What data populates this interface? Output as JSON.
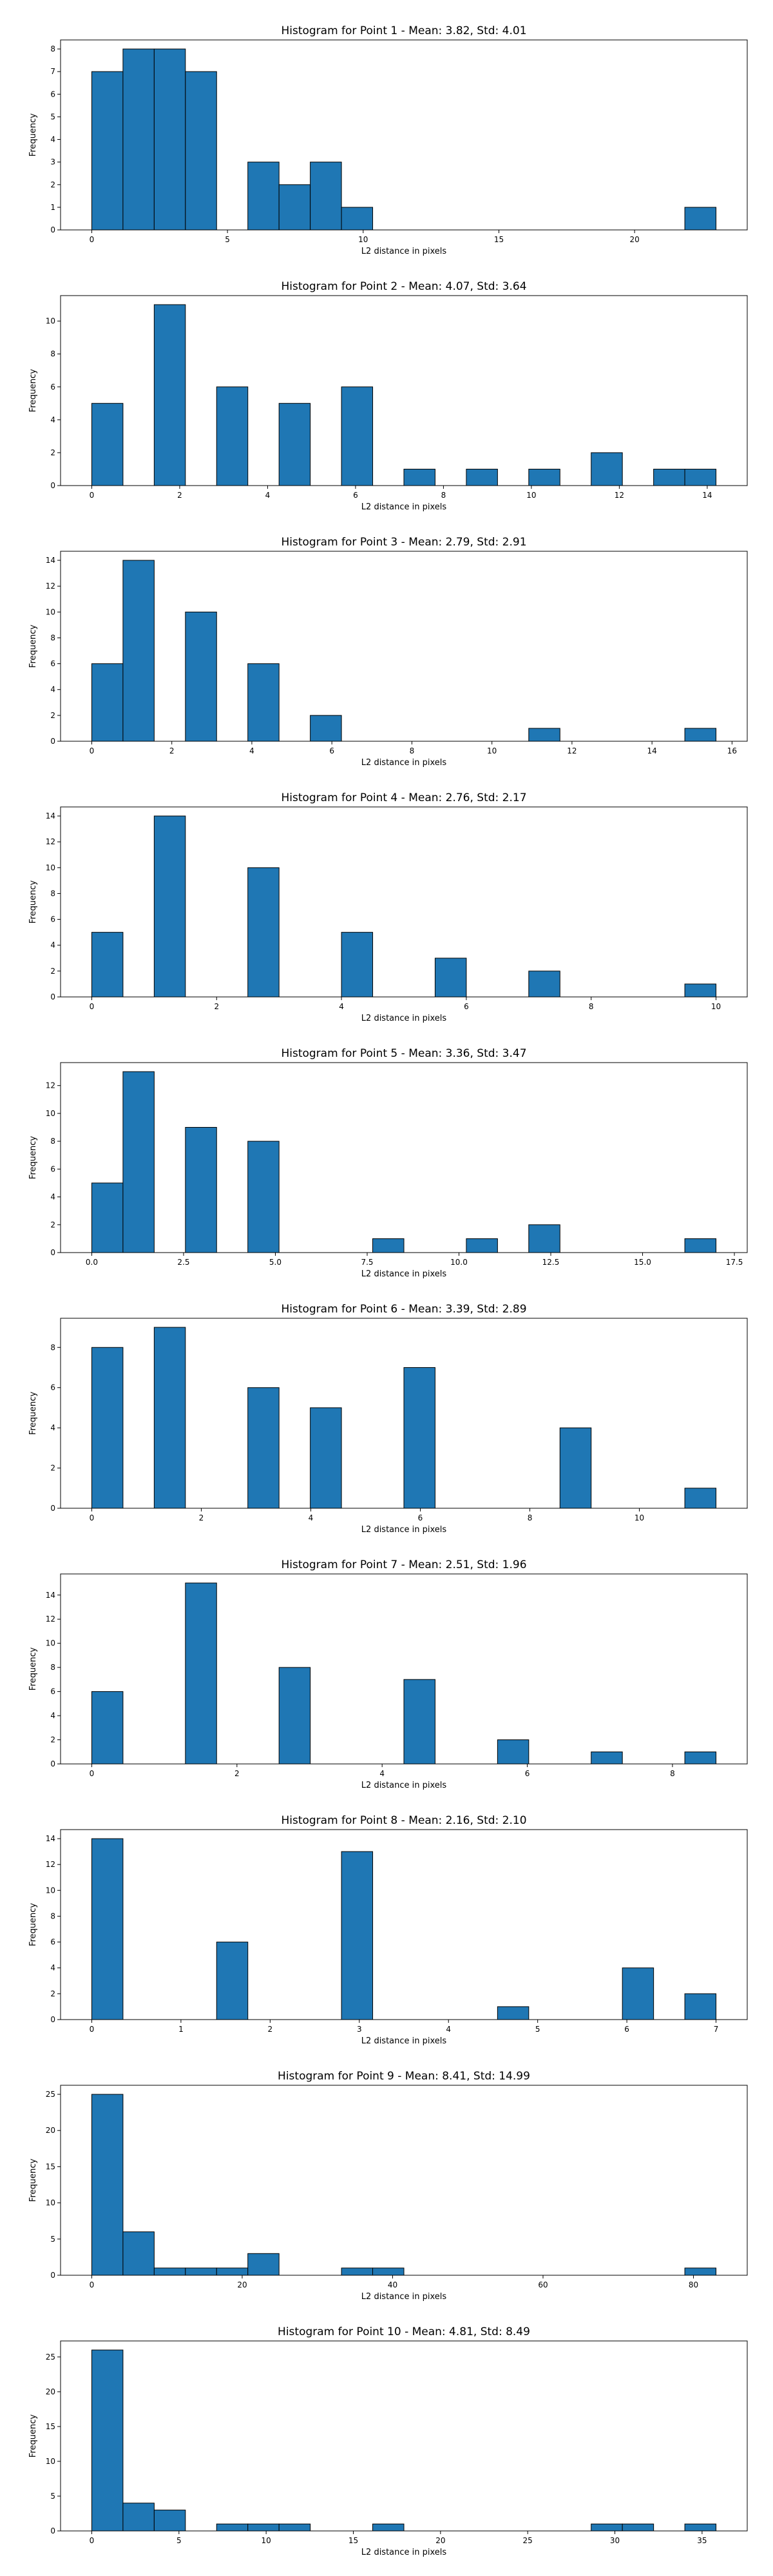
{
  "style": {
    "bar_color": "#1f77b4",
    "edge_color": "#000000"
  },
  "chart_data": [
    {
      "type": "bar",
      "title": "Histogram for Point 1 - Mean: 3.82, Std: 4.01",
      "xlabel": "L2 distance in pixels",
      "ylabel": "Frequency",
      "xlim": [
        -1.15,
        24.15
      ],
      "ylim": [
        0,
        8.4
      ],
      "xticks": [
        0,
        5,
        10,
        15,
        20
      ],
      "xtick_labels": [
        "0",
        "5",
        "10",
        "15",
        "20"
      ],
      "yticks": [
        0,
        1,
        2,
        3,
        4,
        5,
        6,
        7,
        8
      ],
      "bin_start": 0,
      "bin_width": 1.15,
      "counts": [
        7,
        8,
        8,
        7,
        0,
        3,
        2,
        3,
        1,
        0,
        0,
        0,
        0,
        0,
        0,
        0,
        0,
        0,
        0,
        1
      ]
    },
    {
      "type": "bar",
      "title": "Histogram for Point 2 - Mean: 4.07, Std: 3.64",
      "xlabel": "L2 distance in pixels",
      "ylabel": "Frequency",
      "xlim": [
        -0.71,
        14.91
      ],
      "ylim": [
        0,
        11.55
      ],
      "xticks": [
        0,
        2,
        4,
        6,
        8,
        10,
        12,
        14
      ],
      "xtick_labels": [
        "0",
        "2",
        "4",
        "6",
        "8",
        "10",
        "12",
        "14"
      ],
      "yticks": [
        0,
        2,
        4,
        6,
        8,
        10
      ],
      "bin_start": 0,
      "bin_width": 0.71,
      "counts": [
        5,
        0,
        11,
        0,
        6,
        0,
        5,
        0,
        6,
        0,
        1,
        0,
        1,
        0,
        1,
        0,
        2,
        0,
        1,
        1
      ]
    },
    {
      "type": "bar",
      "title": "Histogram for Point 3 - Mean: 2.79, Std: 2.91",
      "xlabel": "L2 distance in pixels",
      "ylabel": "Frequency",
      "xlim": [
        -0.78,
        16.38
      ],
      "ylim": [
        0,
        14.7
      ],
      "xticks": [
        0,
        2,
        4,
        6,
        8,
        10,
        12,
        14,
        16
      ],
      "xtick_labels": [
        "0",
        "2",
        "4",
        "6",
        "8",
        "10",
        "12",
        "14",
        "16"
      ],
      "yticks": [
        0,
        2,
        4,
        6,
        8,
        10,
        12,
        14
      ],
      "bin_start": 0,
      "bin_width": 0.78,
      "counts": [
        6,
        14,
        0,
        10,
        0,
        6,
        0,
        2,
        0,
        0,
        0,
        0,
        0,
        0,
        1,
        0,
        0,
        0,
        0,
        1
      ]
    },
    {
      "type": "bar",
      "title": "Histogram for Point 4 - Mean: 2.76, Std: 2.17",
      "xlabel": "L2 distance in pixels",
      "ylabel": "Frequency",
      "xlim": [
        -0.5,
        10.5
      ],
      "ylim": [
        0,
        14.7
      ],
      "xticks": [
        0,
        2,
        4,
        6,
        8,
        10
      ],
      "xtick_labels": [
        "0",
        "2",
        "4",
        "6",
        "8",
        "10"
      ],
      "yticks": [
        0,
        2,
        4,
        6,
        8,
        10,
        12,
        14
      ],
      "bin_start": 0,
      "bin_width": 0.5,
      "counts": [
        5,
        0,
        14,
        0,
        0,
        10,
        0,
        0,
        5,
        0,
        0,
        3,
        0,
        0,
        2,
        0,
        0,
        0,
        0,
        1
      ]
    },
    {
      "type": "bar",
      "title": "Histogram for Point 5 - Mean: 3.36, Std: 3.47",
      "xlabel": "L2 distance in pixels",
      "ylabel": "Frequency",
      "xlim": [
        -0.85,
        17.85
      ],
      "ylim": [
        0,
        13.65
      ],
      "xticks": [
        0,
        2.5,
        5,
        7.5,
        10,
        12.5,
        15,
        17.5
      ],
      "xtick_labels": [
        "0.0",
        "2.5",
        "5.0",
        "7.5",
        "10.0",
        "12.5",
        "15.0",
        "17.5"
      ],
      "yticks": [
        0,
        2,
        4,
        6,
        8,
        10,
        12
      ],
      "bin_start": 0,
      "bin_width": 0.85,
      "counts": [
        5,
        13,
        0,
        9,
        0,
        8,
        0,
        0,
        0,
        1,
        0,
        0,
        1,
        0,
        2,
        0,
        0,
        0,
        0,
        1
      ]
    },
    {
      "type": "bar",
      "title": "Histogram for Point 6 - Mean: 3.39, Std: 2.89",
      "xlabel": "L2 distance in pixels",
      "ylabel": "Frequency",
      "xlim": [
        -0.57,
        11.97
      ],
      "ylim": [
        0,
        9.45
      ],
      "xticks": [
        0,
        2,
        4,
        6,
        8,
        10
      ],
      "xtick_labels": [
        "0",
        "2",
        "4",
        "6",
        "8",
        "10"
      ],
      "yticks": [
        0,
        2,
        4,
        6,
        8
      ],
      "bin_start": 0,
      "bin_width": 0.57,
      "counts": [
        8,
        0,
        9,
        0,
        0,
        6,
        0,
        5,
        0,
        0,
        7,
        0,
        0,
        0,
        0,
        4,
        0,
        0,
        0,
        1
      ]
    },
    {
      "type": "bar",
      "title": "Histogram for Point 7 - Mean: 2.51, Std: 1.96",
      "xlabel": "L2 distance in pixels",
      "ylabel": "Frequency",
      "xlim": [
        -0.43,
        9.03
      ],
      "ylim": [
        0,
        15.75
      ],
      "xticks": [
        0,
        2,
        4,
        6,
        8
      ],
      "xtick_labels": [
        "0",
        "2",
        "4",
        "6",
        "8"
      ],
      "yticks": [
        0,
        2,
        4,
        6,
        8,
        10,
        12,
        14
      ],
      "bin_start": 0,
      "bin_width": 0.43,
      "counts": [
        6,
        0,
        0,
        15,
        0,
        0,
        8,
        0,
        0,
        0,
        7,
        0,
        0,
        2,
        0,
        0,
        1,
        0,
        0,
        1
      ]
    },
    {
      "type": "bar",
      "title": "Histogram for Point 8 - Mean: 2.16, Std: 2.10",
      "xlabel": "L2 distance in pixels",
      "ylabel": "Frequency",
      "xlim": [
        -0.35,
        7.35
      ],
      "ylim": [
        0,
        14.7
      ],
      "xticks": [
        0,
        1,
        2,
        3,
        4,
        5,
        6,
        7
      ],
      "xtick_labels": [
        "0",
        "1",
        "2",
        "3",
        "4",
        "5",
        "6",
        "7"
      ],
      "yticks": [
        0,
        2,
        4,
        6,
        8,
        10,
        12,
        14
      ],
      "bin_start": 0,
      "bin_width": 0.35,
      "counts": [
        14,
        0,
        0,
        0,
        6,
        0,
        0,
        0,
        13,
        0,
        0,
        0,
        0,
        1,
        0,
        0,
        0,
        4,
        0,
        2
      ]
    },
    {
      "type": "bar",
      "title": "Histogram for Point 9 - Mean: 8.41, Std: 14.99",
      "xlabel": "L2 distance in pixels",
      "ylabel": "Frequency",
      "xlim": [
        -4.15,
        87.15
      ],
      "ylim": [
        0,
        26.25
      ],
      "xticks": [
        0,
        20,
        40,
        60,
        80
      ],
      "xtick_labels": [
        "0",
        "20",
        "40",
        "60",
        "80"
      ],
      "yticks": [
        0,
        5,
        10,
        15,
        20,
        25
      ],
      "bin_start": 0,
      "bin_width": 4.15,
      "counts": [
        25,
        6,
        1,
        1,
        1,
        3,
        0,
        0,
        1,
        1,
        0,
        0,
        0,
        0,
        0,
        0,
        0,
        0,
        0,
        1
      ]
    },
    {
      "type": "bar",
      "title": "Histogram for Point 10 - Mean: 4.81, Std: 8.49",
      "xlabel": "L2 distance in pixels",
      "ylabel": "Frequency",
      "xlim": [
        -1.79,
        37.59
      ],
      "ylim": [
        0,
        27.3
      ],
      "xticks": [
        0,
        5,
        10,
        15,
        20,
        25,
        30,
        35
      ],
      "xtick_labels": [
        "0",
        "5",
        "10",
        "15",
        "20",
        "25",
        "30",
        "35"
      ],
      "yticks": [
        0,
        5,
        10,
        15,
        20,
        25
      ],
      "bin_start": 0,
      "bin_width": 1.79,
      "counts": [
        26,
        4,
        3,
        0,
        1,
        1,
        1,
        0,
        0,
        1,
        0,
        0,
        0,
        0,
        0,
        0,
        1,
        1,
        0,
        1
      ]
    }
  ]
}
